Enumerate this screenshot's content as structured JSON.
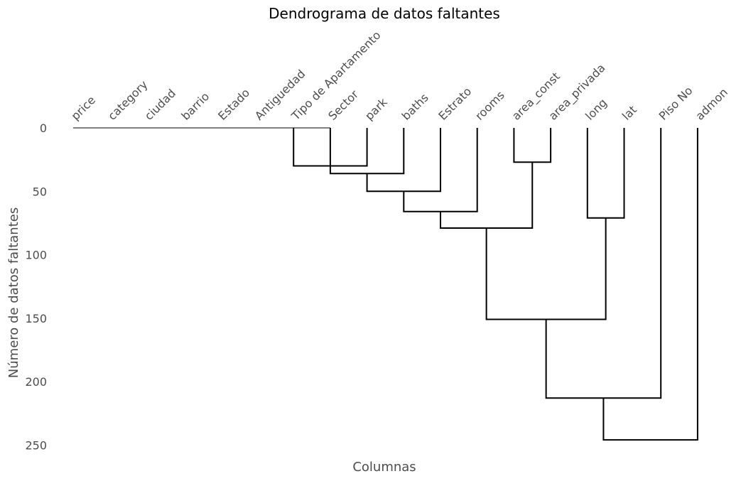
{
  "chart_data": {
    "type": "dendrogram",
    "title": "Dendrograma de datos faltantes",
    "xlabel": "Columnas",
    "ylabel": "Número de datos faltantes",
    "ylim": [
      0,
      260
    ],
    "yticks": [
      0,
      50,
      100,
      150,
      200,
      250
    ],
    "grid": false,
    "leaves": [
      "price",
      "category",
      "ciudad",
      "barrio",
      "Estado",
      "Antiguedad",
      "Tipo de Apartamento",
      "Sector",
      "park",
      "baths",
      "Estrato",
      "rooms",
      "area_const",
      "area_privada",
      "long",
      "lat",
      "Piso No",
      "admon"
    ],
    "merges": [
      {
        "a": "Tipo de Apartamento",
        "b": "park",
        "height": 30
      },
      {
        "a": "Sector",
        "b": "baths",
        "height": 36
      },
      {
        "a": "area_const",
        "b": "area_privada",
        "height": 27
      },
      {
        "a": "cluster-2",
        "b": "Estrato",
        "height": 50
      },
      {
        "a": "cluster-4",
        "b": "rooms",
        "height": 66
      },
      {
        "a": "long",
        "b": "lat",
        "height": 71
      },
      {
        "a": "cluster-5",
        "b": "cluster-3",
        "height": 79
      },
      {
        "a": "cluster-7",
        "b": "cluster-6",
        "height": 151
      },
      {
        "a": "cluster-8",
        "b": "Piso No",
        "height": 213
      },
      {
        "a": "cluster-9",
        "b": "admon",
        "height": 246
      }
    ]
  }
}
